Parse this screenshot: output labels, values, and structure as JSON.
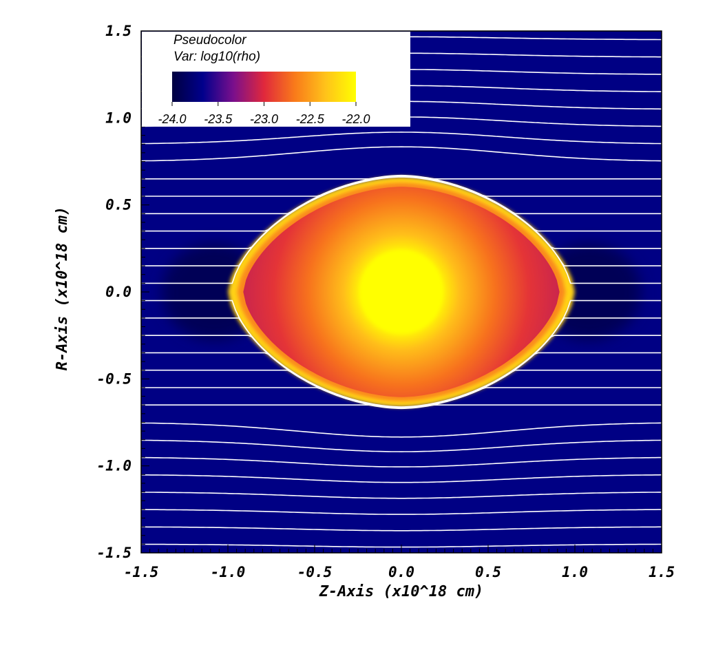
{
  "chart_data": {
    "type": "heatmap",
    "plot_kind": "Pseudocolor",
    "variable_label": "Var: log10(rho)",
    "legend_title": "Pseudocolor",
    "xlabel": "Z-Axis (x10^18 cm)",
    "ylabel": "R-Axis (x10^18 cm)",
    "xlim": [
      -1.5,
      1.5
    ],
    "ylim": [
      -1.5,
      1.5
    ],
    "x_ticks": [
      -1.5,
      -1.0,
      -0.5,
      0.0,
      0.5,
      1.0,
      1.5
    ],
    "x_tick_labels": [
      "-1.5",
      "-1.0",
      "-0.5",
      "0.0",
      "0.5",
      "1.0",
      "1.5"
    ],
    "y_ticks": [
      1.5,
      1.0,
      0.5,
      0.0,
      -0.5,
      -1.0,
      -1.5
    ],
    "y_tick_labels": [
      "1.5",
      "1.0",
      "0.5",
      "0.0",
      "-0.5",
      "-1.0",
      "-1.5"
    ],
    "colorbar": {
      "min": -24.0,
      "max": -22.0,
      "ticks": [
        -24.0,
        -23.5,
        -23.0,
        -22.5,
        -22.0
      ],
      "tick_labels": [
        "-24.0",
        "-23.5",
        "-23.0",
        "-22.5",
        "-22.0"
      ],
      "colors": [
        "#000040",
        "#00008c",
        "#7a0f8c",
        "#e0283c",
        "#f97a1a",
        "#ffc21a",
        "#ffff00"
      ]
    },
    "structure": {
      "description": "dense shell",
      "center": [
        0.0,
        0.0
      ],
      "shell_half_width_z": 0.98,
      "shell_half_height_r": 0.65,
      "core_log_rho": -22.0,
      "shell_log_rho": -22.25,
      "interior_edge_log_rho": -23.1,
      "ambient_log_rho": -23.7,
      "wake_log_rho": -23.9
    },
    "field_lines": {
      "r_values_far": [
        1.45,
        1.35,
        1.25,
        1.15,
        1.05,
        0.95,
        0.85,
        0.75,
        0.65,
        0.55,
        0.45,
        0.35,
        0.25,
        0.15,
        0.05,
        -0.05,
        -0.15,
        -0.25,
        -0.35,
        -0.45,
        -0.55,
        -0.65,
        -0.75,
        -0.85,
        -0.95,
        -1.05,
        -1.15,
        -1.25,
        -1.35,
        -1.45
      ],
      "color": "#ffffff"
    }
  }
}
